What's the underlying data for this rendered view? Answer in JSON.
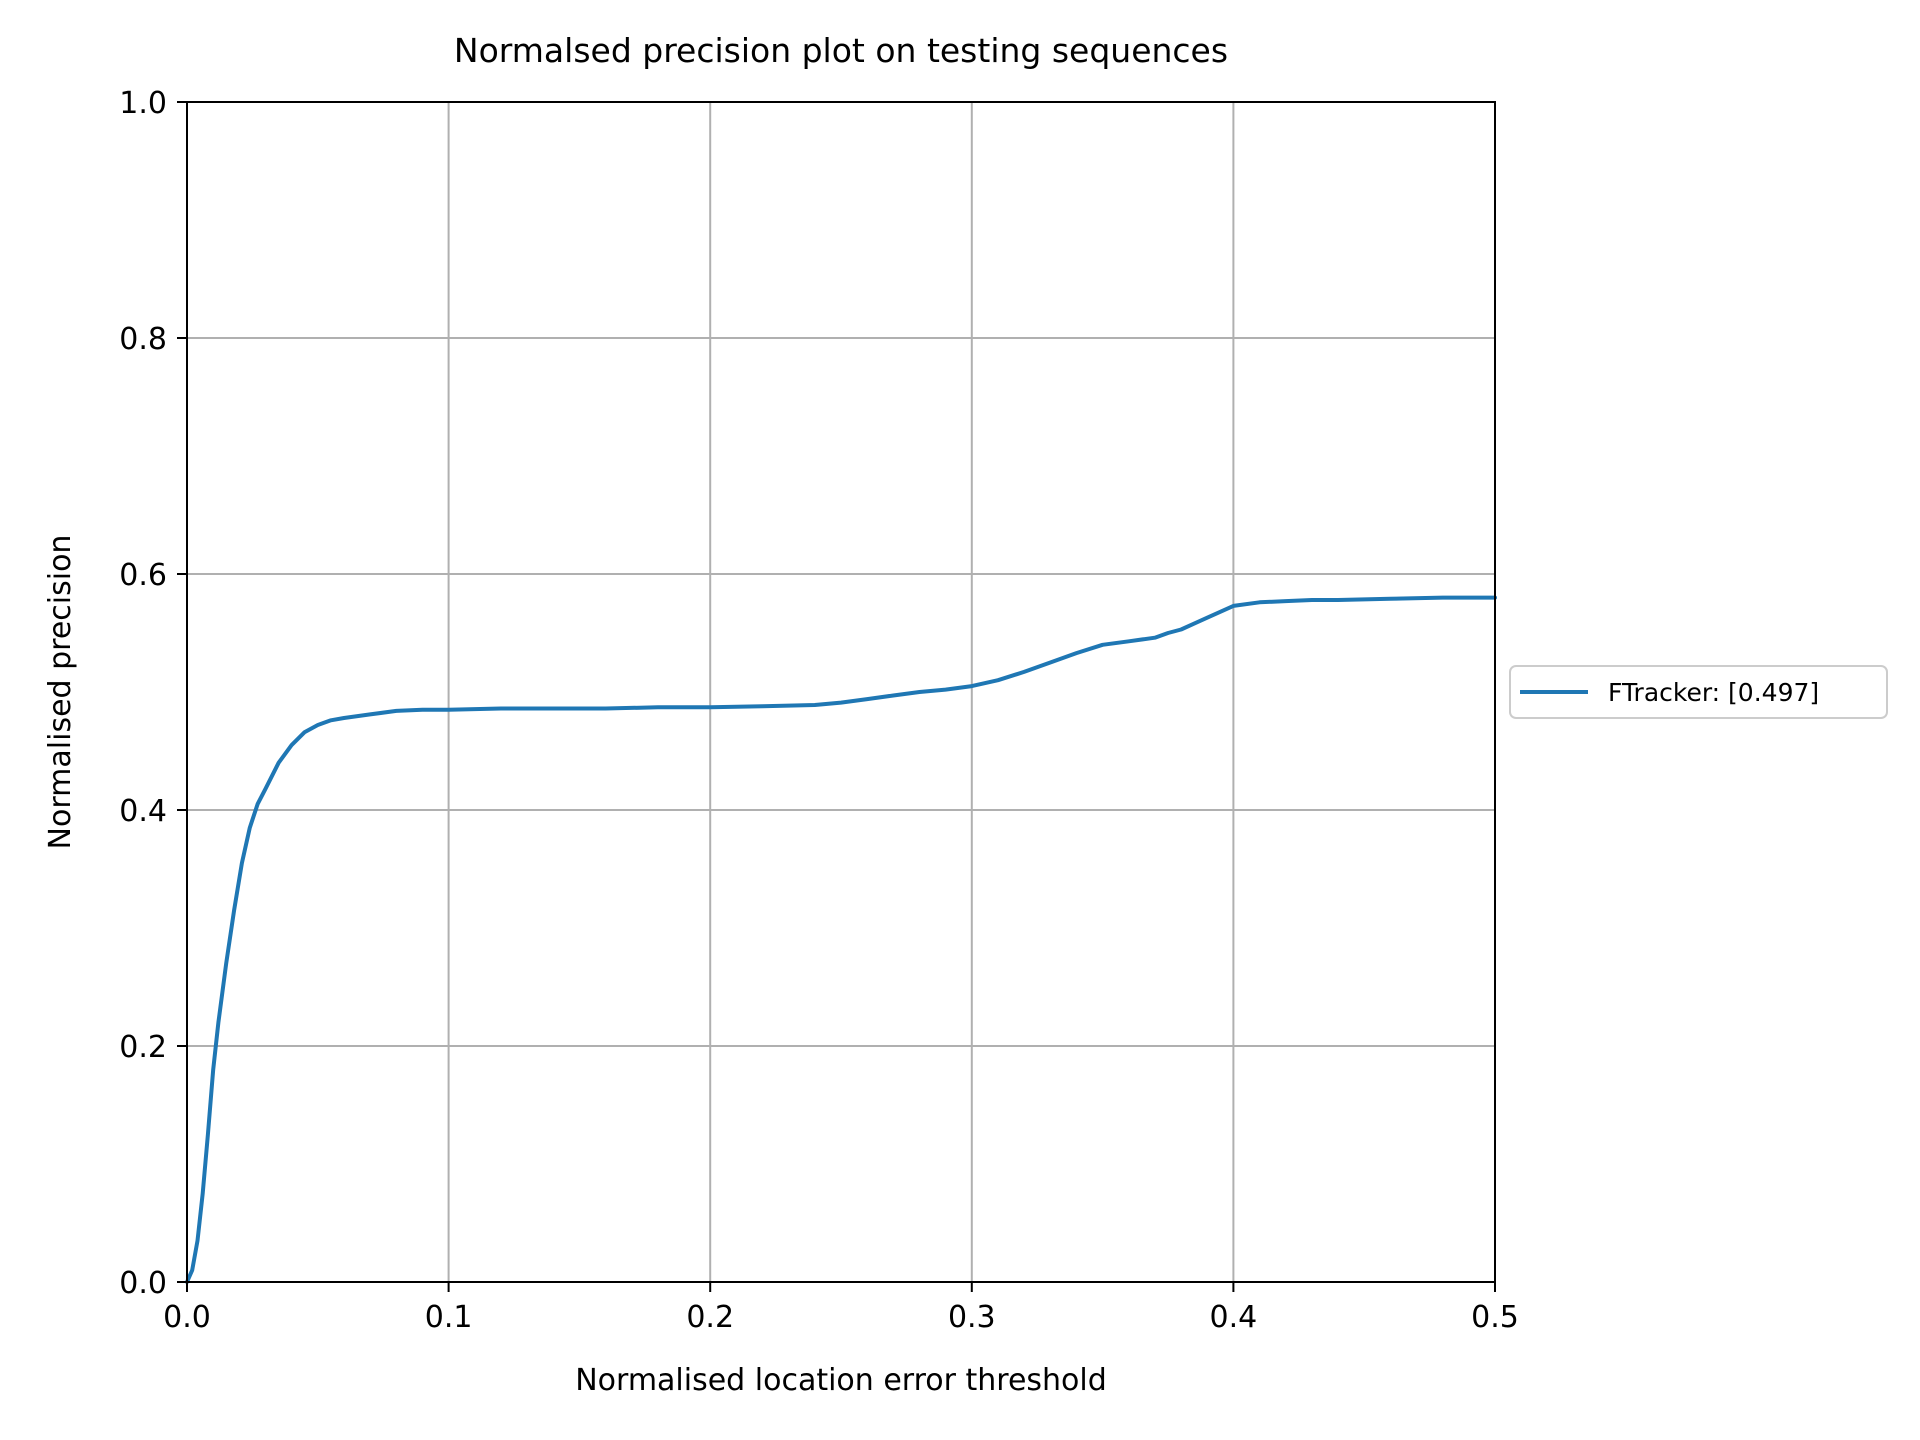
{
  "chart_data": {
    "type": "line",
    "title": "Normalsed precision plot on testing sequences",
    "xlabel": "Normalised location error threshold",
    "ylabel": "Normalised precision",
    "xlim": [
      0.0,
      0.5
    ],
    "ylim": [
      0.0,
      1.0
    ],
    "xticks": [
      "0.0",
      "0.1",
      "0.2",
      "0.3",
      "0.4",
      "0.5"
    ],
    "yticks": [
      "0.0",
      "0.2",
      "0.4",
      "0.6",
      "0.8",
      "1.0"
    ],
    "grid": true,
    "legend_position": "center-right outside",
    "series": [
      {
        "name": "FTracker: [0.497]",
        "color": "#1f77b4",
        "x": [
          0.0,
          0.002,
          0.004,
          0.006,
          0.008,
          0.01,
          0.012,
          0.015,
          0.018,
          0.021,
          0.024,
          0.027,
          0.03,
          0.035,
          0.04,
          0.045,
          0.05,
          0.055,
          0.06,
          0.07,
          0.08,
          0.09,
          0.1,
          0.12,
          0.14,
          0.16,
          0.18,
          0.2,
          0.22,
          0.24,
          0.25,
          0.26,
          0.27,
          0.28,
          0.29,
          0.3,
          0.31,
          0.32,
          0.33,
          0.34,
          0.35,
          0.36,
          0.37,
          0.375,
          0.38,
          0.385,
          0.39,
          0.395,
          0.4,
          0.41,
          0.42,
          0.43,
          0.44,
          0.46,
          0.48,
          0.5
        ],
        "y": [
          0.0,
          0.01,
          0.035,
          0.075,
          0.125,
          0.18,
          0.22,
          0.27,
          0.315,
          0.355,
          0.385,
          0.405,
          0.418,
          0.44,
          0.455,
          0.466,
          0.472,
          0.476,
          0.478,
          0.481,
          0.484,
          0.485,
          0.485,
          0.486,
          0.486,
          0.486,
          0.487,
          0.487,
          0.488,
          0.489,
          0.491,
          0.494,
          0.497,
          0.5,
          0.502,
          0.505,
          0.51,
          0.517,
          0.525,
          0.533,
          0.54,
          0.543,
          0.546,
          0.55,
          0.553,
          0.558,
          0.563,
          0.568,
          0.573,
          0.576,
          0.577,
          0.578,
          0.578,
          0.579,
          0.58,
          0.58
        ]
      }
    ]
  }
}
